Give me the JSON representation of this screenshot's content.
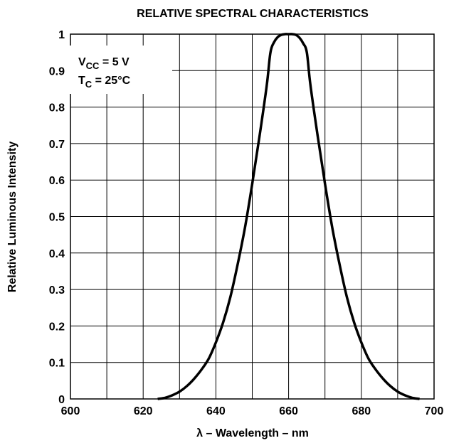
{
  "chart_data": {
    "type": "line",
    "title": "RELATIVE SPECTRAL CHARACTERISTICS",
    "xlabel": "λ – Wavelength – nm",
    "ylabel": "Relative Luminous Intensity",
    "xlim": [
      600,
      700
    ],
    "ylim": [
      0,
      1
    ],
    "grid": true,
    "x_ticks": [
      600,
      620,
      640,
      660,
      680,
      700
    ],
    "x_tick_labels": [
      "600",
      "620",
      "640",
      "660",
      "680",
      "700"
    ],
    "x_grid_step": 10,
    "y_ticks": [
      0,
      0.1,
      0.2,
      0.3,
      0.4,
      0.5,
      0.6,
      0.7,
      0.8,
      0.9,
      1
    ],
    "y_tick_labels": [
      "0",
      "0.1",
      "0.2",
      "0.3",
      "0.4",
      "0.5",
      "0.6",
      "0.7",
      "0.8",
      "0.9",
      "1"
    ],
    "annotations": [
      {
        "main": "V",
        "sub": "CC",
        "rest": " = 5 V"
      },
      {
        "main": "T",
        "sub": "C",
        "rest": " = 25°C"
      }
    ],
    "series": [
      {
        "x": [
          624,
          626,
          628,
          630,
          632,
          634,
          636,
          638,
          640,
          642,
          644,
          646,
          648,
          650,
          652,
          654,
          655,
          656,
          657,
          658,
          659,
          660,
          661,
          662,
          663,
          664,
          665,
          666,
          668,
          670,
          672,
          674,
          676,
          678,
          680,
          682,
          684,
          686,
          688,
          690,
          692,
          694,
          696
        ],
        "y": [
          0.0,
          0.003,
          0.01,
          0.02,
          0.035,
          0.055,
          0.08,
          0.11,
          0.155,
          0.21,
          0.28,
          0.37,
          0.47,
          0.59,
          0.72,
          0.86,
          0.95,
          0.978,
          0.992,
          0.998,
          1.0,
          1.0,
          1.0,
          0.998,
          0.99,
          0.975,
          0.95,
          0.86,
          0.72,
          0.59,
          0.47,
          0.37,
          0.28,
          0.21,
          0.155,
          0.11,
          0.08,
          0.055,
          0.035,
          0.02,
          0.01,
          0.003,
          0.0
        ]
      }
    ],
    "colors": {
      "line": "#000000",
      "grid": "#000000",
      "background": "#ffffff"
    }
  }
}
